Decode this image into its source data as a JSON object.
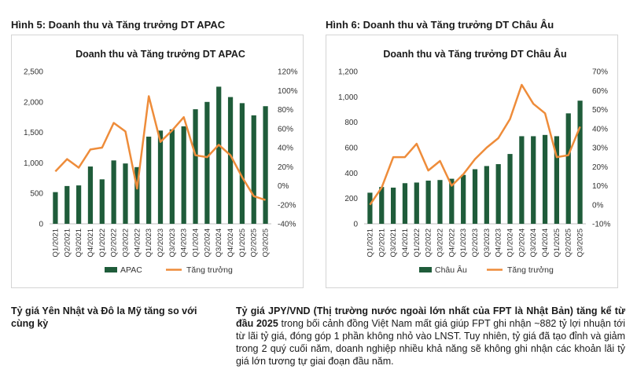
{
  "captions": {
    "left": "Hình 5: Doanh thu và Tăng trưởng DT APAC",
    "right": "Hình 6: Doanh thu và Tăng trưởng DT Châu Âu"
  },
  "colors": {
    "bar": "#1f5c3a",
    "line": "#ee8c3a"
  },
  "chart_data": [
    {
      "type": "bar",
      "title": "Doanh thu và Tăng trưởng DT APAC",
      "categories": [
        "Q1/2021",
        "Q2/2021",
        "Q3/2021",
        "Q4/2021",
        "Q1/2022",
        "Q2/2022",
        "Q3/2022",
        "Q4/2022",
        "Q1/2023",
        "Q2/2023",
        "Q3/2023",
        "Q4/2023",
        "Q1/2024",
        "Q2/2024",
        "Q3/2024",
        "Q4/2024",
        "Q1/2025",
        "Q2/2025",
        "Q3/2025"
      ],
      "series": [
        {
          "name": "APAC",
          "type": "bar",
          "axis": "left",
          "values": [
            520,
            620,
            630,
            940,
            730,
            1040,
            990,
            930,
            1430,
            1530,
            1550,
            1600,
            1880,
            2000,
            2250,
            2080,
            1980,
            1780,
            1930
          ]
        },
        {
          "name": "Tăng trưởng",
          "type": "line",
          "axis": "right",
          "values": [
            15,
            28,
            19,
            38,
            40,
            66,
            57,
            -3,
            94,
            46,
            58,
            72,
            32,
            30,
            43,
            32,
            9,
            -11,
            -15
          ]
        }
      ],
      "y_left": {
        "min": 0,
        "max": 2500,
        "ticks": [
          "0",
          "500",
          "1,000",
          "1,500",
          "2,000",
          "2,500"
        ]
      },
      "y_right": {
        "min": -40,
        "max": 120,
        "ticks": [
          "-40%",
          "-20%",
          "0%",
          "20%",
          "40%",
          "60%",
          "80%",
          "100%",
          "120%"
        ]
      },
      "legend": [
        "APAC",
        "Tăng trưởng"
      ],
      "legend_position": "bottom"
    },
    {
      "type": "bar",
      "title": "Doanh thu và Tăng trưởng DT Châu Âu",
      "categories": [
        "Q1/2021",
        "Q2/2021",
        "Q3/2021",
        "Q4/2021",
        "Q1/2022",
        "Q2/2022",
        "Q3/2022",
        "Q4/2022",
        "Q1/2023",
        "Q2/2023",
        "Q3/2023",
        "Q4/2023",
        "Q1/2024",
        "Q2/2024",
        "Q3/2024",
        "Q4/2024",
        "Q1/2025",
        "Q2/2025",
        "Q3/2025"
      ],
      "series": [
        {
          "name": "Châu Âu",
          "type": "bar",
          "axis": "left",
          "values": [
            245,
            290,
            285,
            320,
            325,
            340,
            345,
            355,
            385,
            430,
            455,
            470,
            550,
            690,
            690,
            700,
            690,
            870,
            970
          ]
        },
        {
          "name": "Tăng trưởng",
          "type": "line",
          "axis": "right",
          "values": [
            0,
            9,
            25,
            25,
            32,
            18,
            23,
            10,
            16,
            24,
            30,
            35,
            45,
            63,
            53,
            48,
            25,
            26,
            41
          ]
        }
      ],
      "y_left": {
        "min": 0,
        "max": 1200,
        "ticks": [
          "0",
          "200",
          "400",
          "600",
          "800",
          "1,000",
          "1,200"
        ]
      },
      "y_right": {
        "min": -10,
        "max": 70,
        "ticks": [
          "-10%",
          "0%",
          "10%",
          "20%",
          "30%",
          "40%",
          "50%",
          "60%",
          "70%"
        ]
      },
      "legend": [
        "Châu Âu",
        "Tăng trưởng"
      ],
      "legend_position": "bottom"
    }
  ],
  "commentary": {
    "heading": "Tỷ giá Yên Nhật và Đô la Mỹ tăng so với cùng kỳ",
    "body_bold": "Tỷ giá JPY/VND (Thị trường nước ngoài lớn nhất của FPT là Nhật Bản) tăng kể từ đầu 2025",
    "body_rest": " trong bối cảnh đồng Việt Nam mất giá giúp FPT ghi nhận ~882 tỷ lợi nhuận tới từ lãi tỷ giá, đóng góp 1 phần không nhỏ vào LNST. Tuy nhiên, tỷ giá đã tạo đỉnh và giảm trong 2 quý cuối năm, doanh nghiệp nhiều khả năng sẽ không ghi nhận các khoản lãi tỷ giá lớn tương tự giai đoạn đầu năm."
  }
}
